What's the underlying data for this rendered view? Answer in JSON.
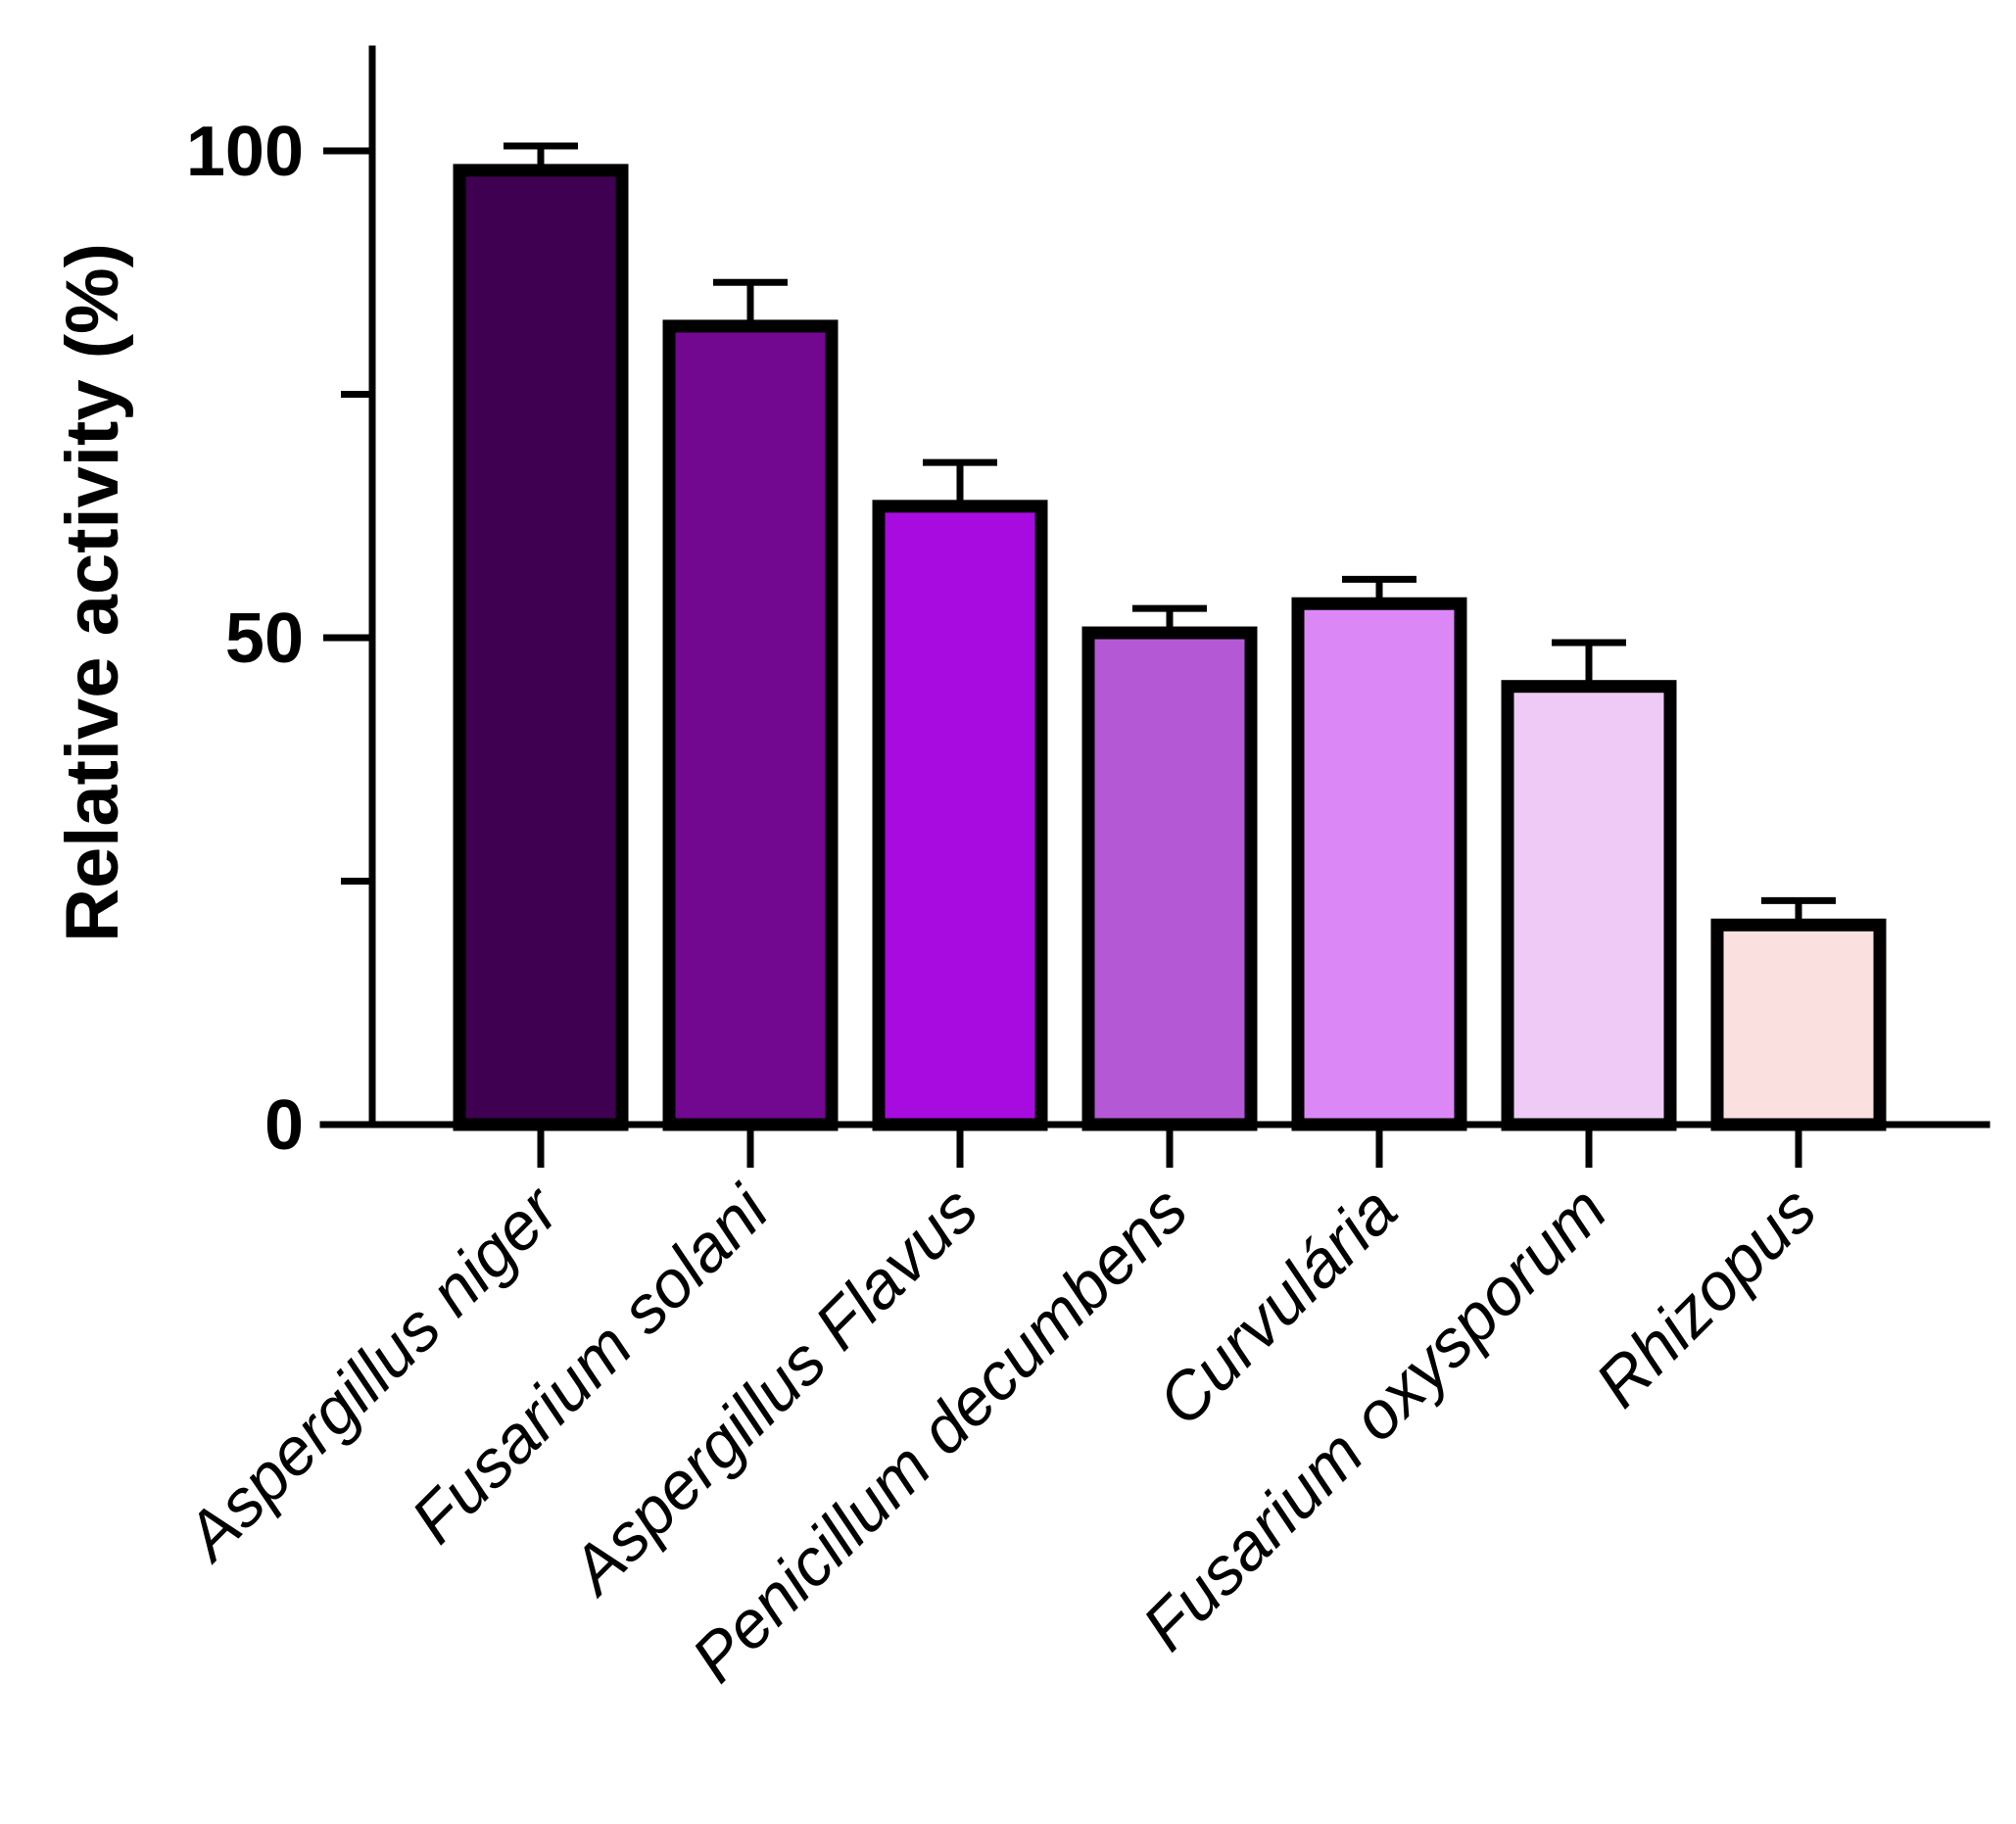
{
  "chart_data": {
    "type": "bar",
    "title": "",
    "xlabel": "",
    "ylabel": "Relative activity (%)",
    "ylim": [
      0,
      110
    ],
    "yticks": [
      0,
      50,
      100
    ],
    "y_minor_ticks": [
      25,
      75
    ],
    "grid": false,
    "categories": [
      "Aspergillus niger",
      "Fusarium solani",
      "Aspergillus Flavus",
      "Penicillum decumbens",
      "Curvulária",
      "Fusarium oxysporum",
      "Rhizopus"
    ],
    "values": [
      98,
      82,
      63.5,
      50.5,
      53.5,
      45,
      20.5
    ],
    "error": [
      2.5,
      4.5,
      4.5,
      2.5,
      2.5,
      4.5,
      2.5
    ],
    "colors": [
      "#400052",
      "#720790",
      "#a80be0",
      "#b558d5",
      "#db88f6",
      "#efcaf7",
      "#fbe0e0"
    ]
  }
}
